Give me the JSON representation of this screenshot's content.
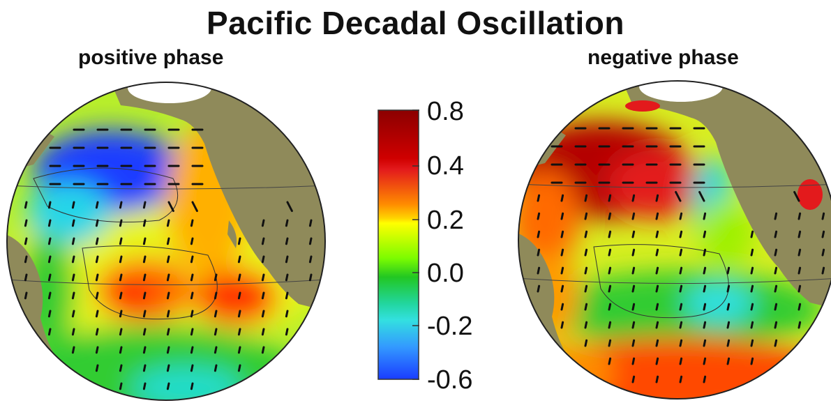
{
  "title": "Pacific Decadal Oscillation",
  "panels": [
    {
      "label": "positive phase"
    },
    {
      "label": "negative phase"
    }
  ],
  "colorbar": {
    "tick_labels": [
      "0.8",
      "0.4",
      "0.2",
      "0.0",
      "-0.2",
      "-0.6"
    ],
    "colors": {
      "dark_red": "#8b0000",
      "red": "#e31a1c",
      "orange": "#ff8c00",
      "yellow": "#ffff00",
      "green": "#22c722",
      "cyan": "#33e0e0",
      "blue": "#1a3cff"
    }
  },
  "map_colors": {
    "land": "#8f8a5a",
    "ice": "#ffffff",
    "vector": "#111111"
  }
}
